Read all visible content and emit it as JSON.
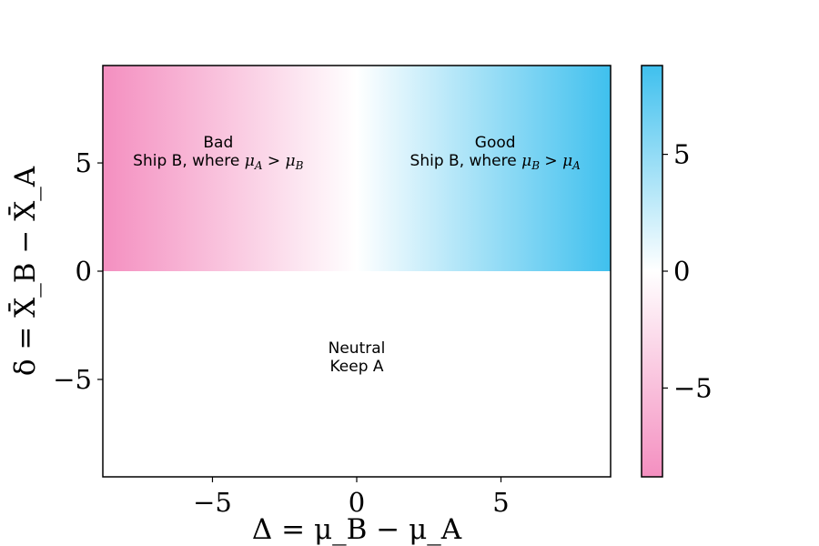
{
  "chart_data": {
    "type": "heatmap",
    "xlabel": "Δ = μ_B − μ_A",
    "ylabel": "δ = X̄_B − X̄_A",
    "xlim": [
      -8.8,
      8.8
    ],
    "ylim": [
      -9.5,
      9.5
    ],
    "x_ticks": [
      {
        "value": -5,
        "label": "−5"
      },
      {
        "value": 0,
        "label": "0"
      },
      {
        "value": 5,
        "label": "5"
      }
    ],
    "y_ticks": [
      {
        "value": -5,
        "label": "−5"
      },
      {
        "value": 0,
        "label": "0"
      },
      {
        "value": 5,
        "label": "5"
      }
    ],
    "colorbar": {
      "range": [
        -8.8,
        8.8
      ],
      "ticks": [
        {
          "value": -5,
          "label": "−5"
        },
        {
          "value": 0,
          "label": "0"
        },
        {
          "value": 5,
          "label": "5"
        }
      ],
      "colors": {
        "negative": "#f48fc0",
        "zero": "#ffffff",
        "positive": "#3fc0ee"
      }
    },
    "cell_rule": "value equals Δ where δ > 0, otherwise 0",
    "annotations": [
      {
        "id": "bad",
        "x": -4.8,
        "y": 5.0,
        "title": "Bad",
        "text_prefix": "Ship B, where ",
        "math": {
          "a": "μ",
          "a_sub": "A",
          "op": " > ",
          "b": "μ",
          "b_sub": "B"
        }
      },
      {
        "id": "good",
        "x": 4.8,
        "y": 5.0,
        "title": "Good",
        "text_prefix": "Ship B, where ",
        "math": {
          "a": "μ",
          "a_sub": "B",
          "op": " > ",
          "b": "μ",
          "b_sub": "A"
        }
      },
      {
        "id": "neutral",
        "x": 0,
        "y": -4.5,
        "title": "Neutral",
        "line2": "Keep A"
      }
    ]
  }
}
